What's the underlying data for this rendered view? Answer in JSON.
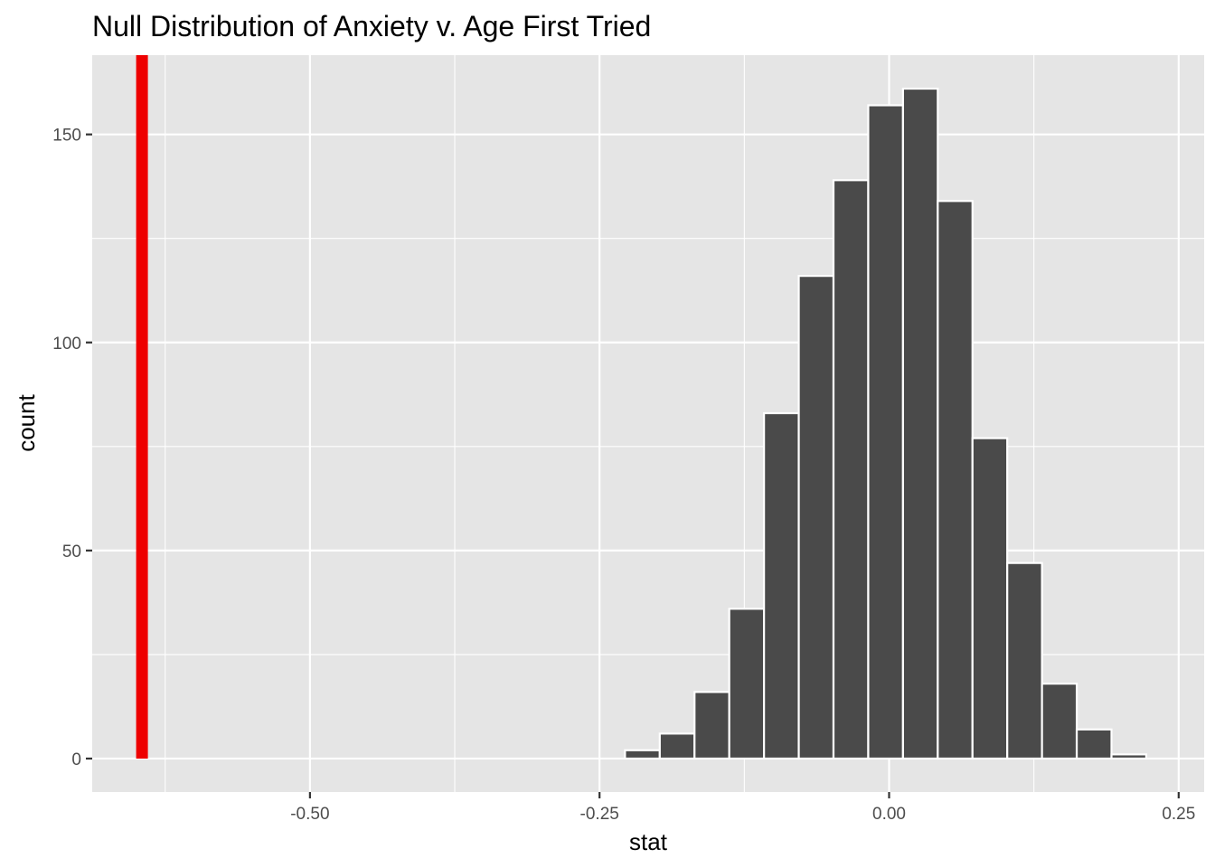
{
  "chart_data": {
    "type": "bar",
    "title": "Null Distribution of Anxiety v. Age First Tried",
    "xlabel": "stat",
    "ylabel": "count",
    "xlim": [
      -0.688,
      0.272
    ],
    "ylim": [
      -8.05,
      169.05
    ],
    "x_ticks": [
      -0.5,
      -0.25,
      0.0,
      0.25
    ],
    "x_tick_labels": [
      "-0.50",
      "-0.25",
      "0.00",
      "0.25"
    ],
    "y_ticks": [
      0,
      50,
      100,
      150
    ],
    "y_tick_labels": [
      "0",
      "50",
      "100",
      "150"
    ],
    "grid": true,
    "bin_width": 0.03,
    "bins": [
      {
        "x0": -0.228,
        "x1": -0.198,
        "count": 2
      },
      {
        "x0": -0.198,
        "x1": -0.168,
        "count": 6
      },
      {
        "x0": -0.168,
        "x1": -0.138,
        "count": 16
      },
      {
        "x0": -0.138,
        "x1": -0.108,
        "count": 36
      },
      {
        "x0": -0.108,
        "x1": -0.078,
        "count": 83
      },
      {
        "x0": -0.078,
        "x1": -0.048,
        "count": 116
      },
      {
        "x0": -0.048,
        "x1": -0.018,
        "count": 139
      },
      {
        "x0": -0.018,
        "x1": 0.012,
        "count": 157
      },
      {
        "x0": 0.012,
        "x1": 0.042,
        "count": 161
      },
      {
        "x0": 0.042,
        "x1": 0.072,
        "count": 134
      },
      {
        "x0": 0.072,
        "x1": 0.102,
        "count": 77
      },
      {
        "x0": 0.102,
        "x1": 0.132,
        "count": 47
      },
      {
        "x0": 0.132,
        "x1": 0.162,
        "count": 18
      },
      {
        "x0": 0.162,
        "x1": 0.192,
        "count": 7
      },
      {
        "x0": 0.192,
        "x1": 0.222,
        "count": 1
      }
    ],
    "observed_stat": -0.645,
    "colors": {
      "panel": "#e5e5e5",
      "grid": "#ffffff",
      "bar_fill": "#4a4a4a",
      "bar_outline": "#ffffff",
      "observed_line": "#ee0000"
    }
  }
}
